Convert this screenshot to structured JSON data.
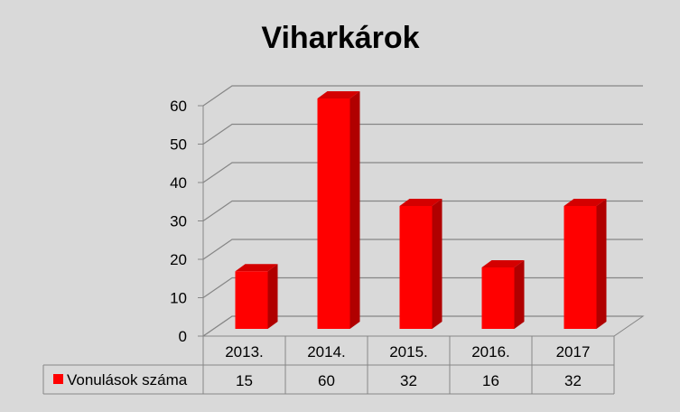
{
  "chart_data": {
    "type": "bar",
    "title": "Viharkárok",
    "categories": [
      "2013.",
      "2014.",
      "2015.",
      "2016.",
      "2017"
    ],
    "series": [
      {
        "name": "Vonulások száma",
        "values": [
          15,
          60,
          32,
          16,
          32
        ]
      }
    ],
    "ylim": [
      0,
      60
    ],
    "yticks": [
      0,
      10,
      20,
      30,
      40,
      50,
      60
    ],
    "xlabel": "",
    "ylabel": "",
    "grid": true,
    "legend": "data-table-left",
    "data_table": true,
    "three_d": true,
    "colors": {
      "background": "#d9d9d9",
      "bar_front": "#ff0000",
      "bar_side": "#b00000",
      "bar_top": "#d40000",
      "grid": "#868686",
      "axis": "#868686"
    }
  }
}
